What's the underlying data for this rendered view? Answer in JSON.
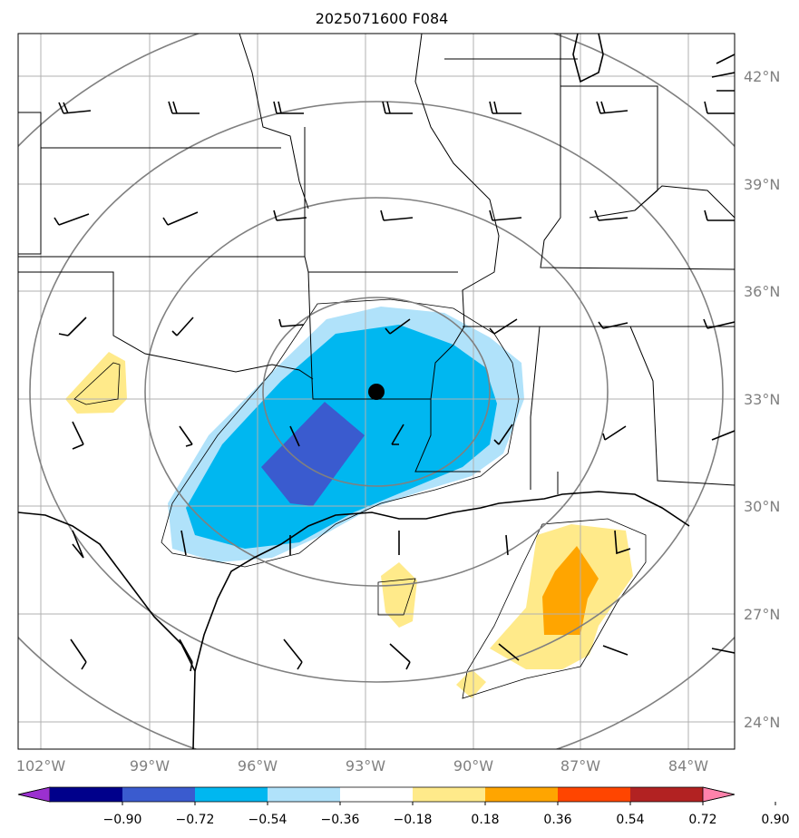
{
  "title": "2025071600 F084",
  "longitude_labels": [
    "102°W",
    "99°W",
    "96°W",
    "93°W",
    "90°W",
    "87°W",
    "84°W"
  ],
  "latitude_labels": [
    "42°N",
    "39°N",
    "36°N",
    "33°N",
    "30°N",
    "27°N",
    "24°N"
  ],
  "colorbar": {
    "tick_labels": [
      "−0.90",
      "−0.72",
      "−0.54",
      "−0.36",
      "−0.18",
      "0.18",
      "0.36",
      "0.54",
      "0.72",
      "0.90"
    ],
    "colors": [
      "#9b30d0",
      "#00008b",
      "#3a5bcf",
      "#00b7f0",
      "#b0e2fa",
      "#ffffff",
      "#ffea8a",
      "#ffa500",
      "#ff4500",
      "#b22222",
      "#ff82ab"
    ]
  },
  "center_marker": {
    "lon": -92.7,
    "lat": 33.2
  }
}
